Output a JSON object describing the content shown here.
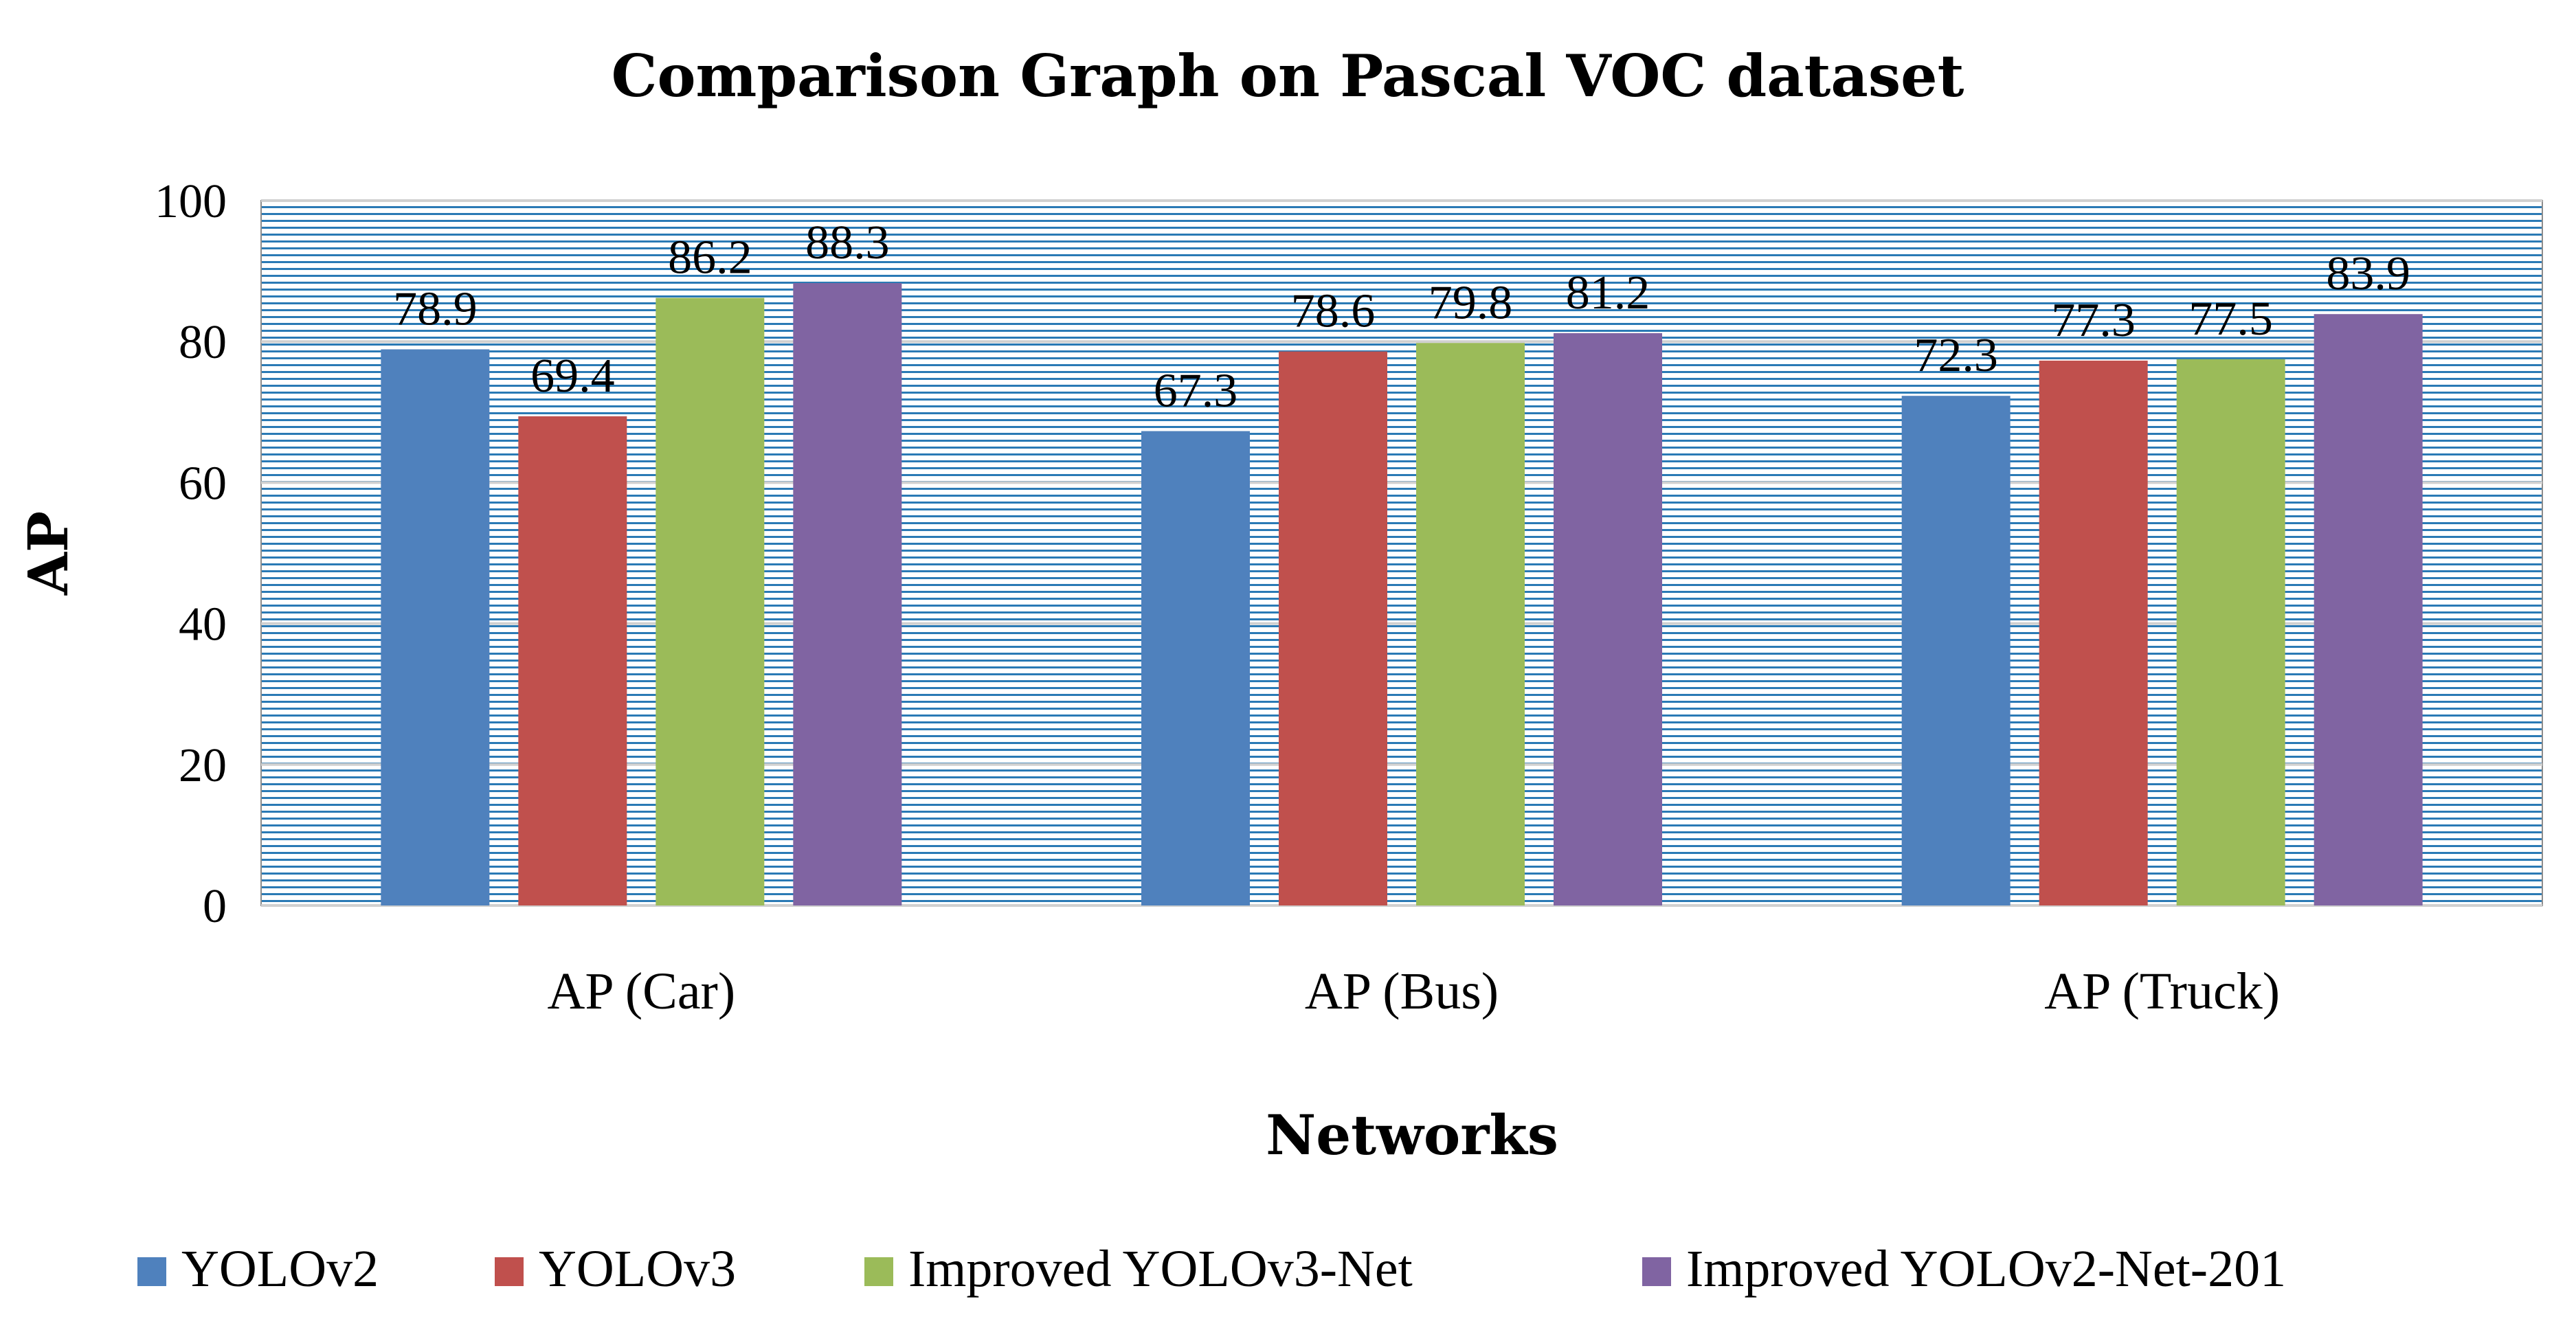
{
  "chart_data": {
    "type": "bar",
    "title": "Comparison Graph on Pascal VOC dataset",
    "xlabel": "Networks",
    "ylabel": "AP",
    "ylim": [
      0,
      100
    ],
    "yticks": [
      "0",
      "20",
      "40",
      "60",
      "80",
      "100"
    ],
    "categories": [
      "AP (Car)",
      "AP (Bus)",
      "AP (Truck)"
    ],
    "series": [
      {
        "name": "YOLOv2",
        "color": "#4F81BD",
        "values": [
          78.9,
          67.3,
          72.3
        ]
      },
      {
        "name": "YOLOv3",
        "color": "#C0504D",
        "values": [
          69.4,
          78.6,
          77.3
        ]
      },
      {
        "name": "Improved YOLOv3-Net",
        "color": "#9BBB59",
        "values": [
          86.2,
          79.8,
          77.5
        ]
      },
      {
        "name": "Improved YOLOv2-Net-201",
        "color": "#8064A2",
        "values": [
          88.3,
          81.2,
          83.9
        ]
      }
    ],
    "legend_position": "bottom",
    "grid": true,
    "plot_background": "#1B6FA8"
  }
}
